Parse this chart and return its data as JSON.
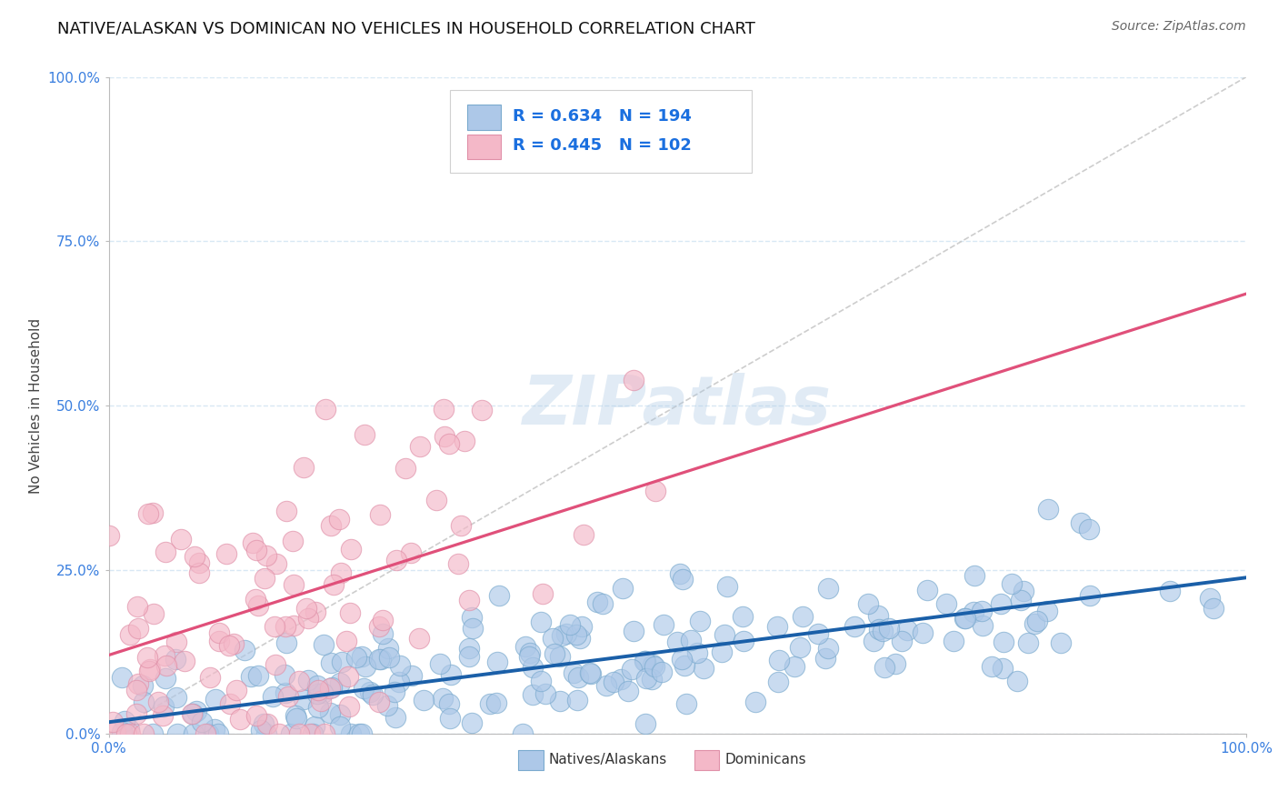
{
  "title": "NATIVE/ALASKAN VS DOMINICAN NO VEHICLES IN HOUSEHOLD CORRELATION CHART",
  "source": "Source: ZipAtlas.com",
  "ylabel": "No Vehicles in Household",
  "xtick_labels": [
    "0.0%",
    "100.0%"
  ],
  "ytick_labels": [
    "0.0%",
    "25.0%",
    "50.0%",
    "75.0%",
    "100.0%"
  ],
  "ytick_values": [
    0.0,
    0.25,
    0.5,
    0.75,
    1.0
  ],
  "native_color": "#adc8e8",
  "native_edge_color": "#7aaace",
  "dominican_color": "#f4b8c8",
  "dominican_edge_color": "#e090a8",
  "native_line_color": "#1a5fa8",
  "dominican_line_color": "#e0507a",
  "diagonal_line_color": "#c8c8c8",
  "R_native": 0.634,
  "N_native": 194,
  "R_dominican": 0.445,
  "N_dominican": 102,
  "native_slope": 0.22,
  "native_intercept": 0.018,
  "dominican_slope": 0.55,
  "dominican_intercept": 0.12,
  "watermark": "ZIPatlas",
  "background_color": "#ffffff",
  "grid_color": "#d8e8f4",
  "title_fontsize": 13,
  "axis_label_fontsize": 11,
  "tick_fontsize": 11,
  "legend_color": "#1a6fdf",
  "tick_color": "#3a7fdf",
  "source_color": "#666666"
}
